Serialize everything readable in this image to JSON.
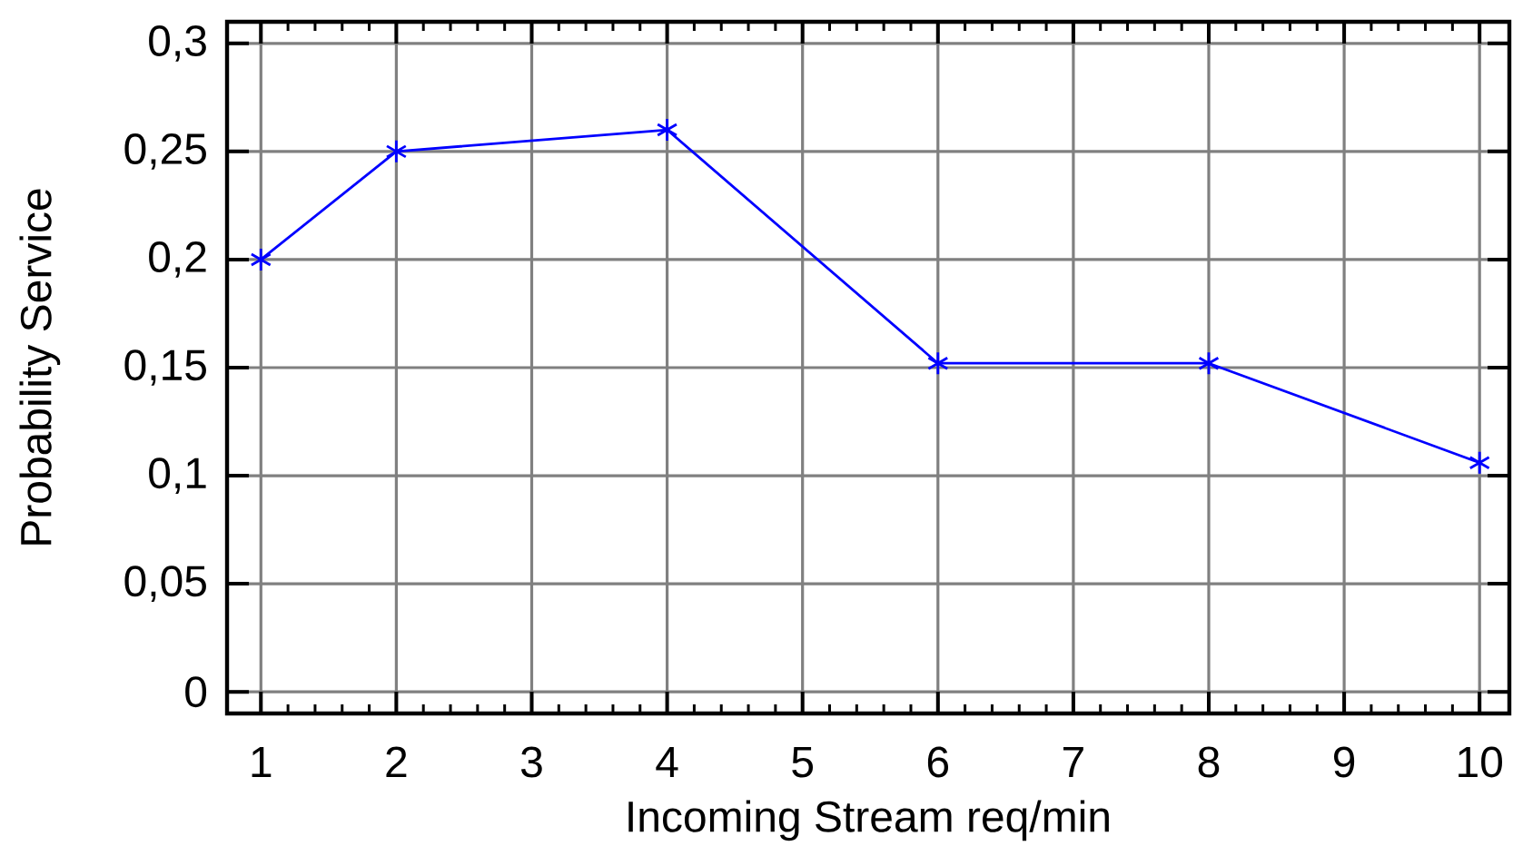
{
  "chart_data": {
    "type": "line",
    "xlabel": "Incoming Stream  req/min",
    "ylabel": "Probability Service",
    "x": [
      1,
      2,
      4,
      6,
      8,
      10
    ],
    "series": [
      {
        "color": "#0000ff",
        "values": [
          0.2,
          0.25,
          0.26,
          0.152,
          0.152,
          0.106
        ]
      }
    ],
    "xlim": [
      0.75,
      10.22
    ],
    "ylim": [
      -0.01,
      0.31
    ],
    "xticks": [
      1,
      2,
      3,
      4,
      5,
      6,
      7,
      8,
      9,
      10
    ],
    "yticks": [
      {
        "value": 0,
        "label": "0"
      },
      {
        "value": 0.05,
        "label": "0,05"
      },
      {
        "value": 0.1,
        "label": "0,1"
      },
      {
        "value": 0.15,
        "label": "0,15"
      },
      {
        "value": 0.2,
        "label": "0,2"
      },
      {
        "value": 0.25,
        "label": "0,25"
      },
      {
        "value": 0.3,
        "label": "0,3"
      }
    ],
    "grid": true,
    "marker": "cross",
    "line_style": "solid"
  }
}
